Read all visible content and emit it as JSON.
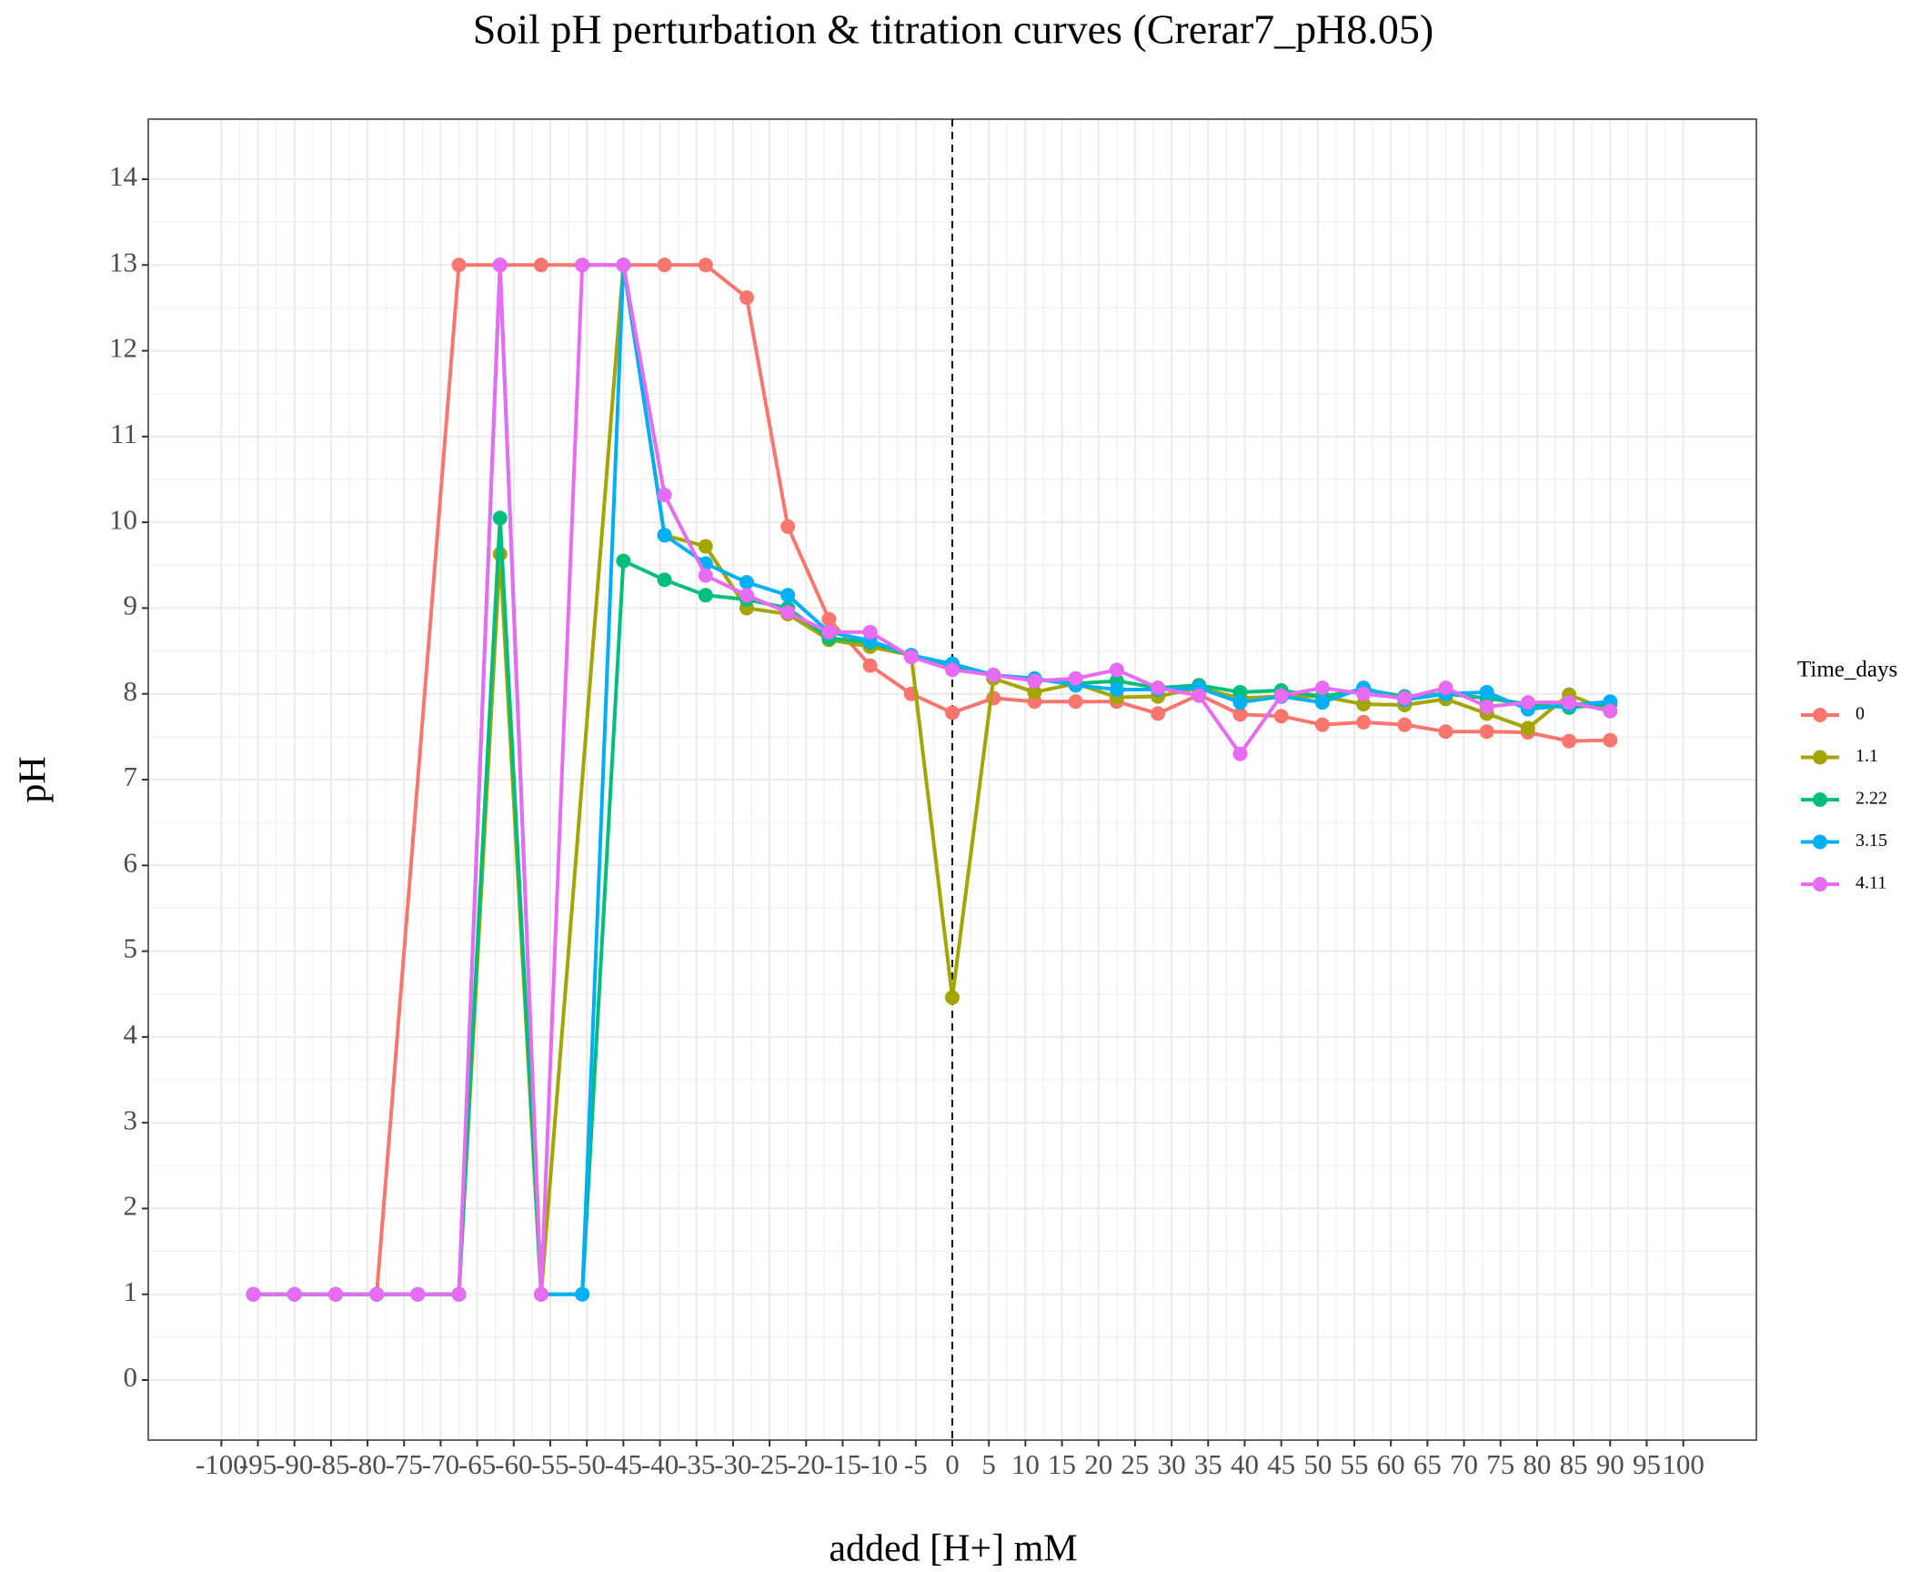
{
  "chart_data": {
    "type": "line",
    "title": "Soil pH perturbation & titration curves (Crerar7_pH8.05)",
    "x_label": "added [H+] mM",
    "y_label": "pH",
    "legend_title": "Time_days",
    "x": [
      -95.625,
      -90,
      -84.375,
      -78.75,
      -73.125,
      -67.5,
      -61.875,
      -56.25,
      -50.625,
      -45,
      -39.375,
      -33.75,
      -28.125,
      -22.5,
      -16.875,
      -11.25,
      -5.625,
      0,
      5.625,
      11.25,
      16.875,
      22.5,
      28.125,
      33.75,
      39.375,
      45,
      50.625,
      56.25,
      61.875,
      67.5,
      73.125,
      78.75,
      84.375,
      90
    ],
    "series": [
      {
        "name": "0",
        "color": "#F8766D",
        "x": [
          -95.625,
          -90,
          -84.375,
          -78.75,
          -67.5,
          -61.875,
          -56.25,
          -50.625,
          -45,
          -39.375,
          -33.75,
          -28.125,
          -22.5,
          -16.875,
          -11.25,
          -5.625,
          0,
          5.625,
          11.25,
          16.875,
          22.5,
          28.125,
          33.75,
          39.375,
          45,
          50.625,
          56.25,
          61.875,
          67.5,
          73.125,
          78.75,
          84.375,
          90
        ],
        "values": [
          1,
          1,
          1,
          1,
          13,
          13,
          13,
          13,
          13,
          13,
          13,
          12.62,
          9.95,
          8.87,
          8.33,
          8.0,
          7.78,
          7.95,
          7.91,
          7.91,
          7.91,
          7.77,
          7.99,
          7.76,
          7.74,
          7.64,
          7.67,
          7.64,
          7.56,
          7.56,
          7.55,
          7.45,
          7.46
        ]
      },
      {
        "name": "1.1",
        "color": "#A3A500",
        "x": [
          -95.625,
          -90,
          -84.375,
          -78.75,
          -73.125,
          -67.5,
          -61.875,
          -56.25,
          -45,
          -39.375,
          -33.75,
          -28.125,
          -22.5,
          -16.875,
          -11.25,
          -5.625,
          0,
          5.625,
          11.25,
          16.875,
          22.5,
          28.125,
          33.75,
          39.375,
          45,
          50.625,
          56.25,
          61.875,
          67.5,
          73.125,
          78.75,
          84.375,
          90
        ],
        "values": [
          1,
          1,
          1,
          1,
          1,
          1,
          9.63,
          1,
          13,
          9.85,
          9.72,
          9.0,
          8.93,
          8.63,
          8.55,
          8.45,
          4.46,
          8.18,
          8.02,
          8.12,
          7.96,
          7.97,
          8.07,
          7.95,
          7.97,
          7.97,
          7.88,
          7.87,
          7.94,
          7.77,
          7.6,
          7.99,
          7.8
        ]
      },
      {
        "name": "2.22",
        "color": "#00BF7D",
        "values": [
          1,
          1,
          1,
          1,
          1,
          1,
          10.05,
          1,
          1,
          9.55,
          9.33,
          9.15,
          9.1,
          9.0,
          8.65,
          8.6,
          8.45,
          8.33,
          8.22,
          8.17,
          8.12,
          8.15,
          8.07,
          8.1,
          8.02,
          8.04,
          7.97,
          8.05,
          7.97,
          8.0,
          7.95,
          7.88,
          7.84,
          7.88
        ]
      },
      {
        "name": "3.15",
        "color": "#00B0F6",
        "values": [
          1,
          1,
          1,
          1,
          1,
          1,
          13,
          1,
          1,
          13,
          9.85,
          9.52,
          9.3,
          9.15,
          8.72,
          8.62,
          8.45,
          8.35,
          8.22,
          8.18,
          8.1,
          8.05,
          8.05,
          8.07,
          7.9,
          7.97,
          7.9,
          8.07,
          7.93,
          8.0,
          8.02,
          7.82,
          7.87,
          7.91
        ]
      },
      {
        "name": "4.11",
        "color": "#E76BF3",
        "values": [
          1,
          1,
          1,
          1,
          1,
          1,
          13,
          1,
          13,
          13,
          10.32,
          9.38,
          9.15,
          8.95,
          8.72,
          8.72,
          8.43,
          8.28,
          8.22,
          8.15,
          8.18,
          8.28,
          8.07,
          7.98,
          7.3,
          7.98,
          8.07,
          8.0,
          7.95,
          8.07,
          7.85,
          7.9,
          7.9,
          7.8
        ]
      }
    ],
    "vline": 0,
    "xlim": [
      -110,
      110
    ],
    "ylim": [
      -0.7,
      14.7
    ],
    "xticks": [
      -100,
      -95,
      -90,
      -85,
      -80,
      -75,
      -70,
      -65,
      -60,
      -55,
      -50,
      -45,
      -40,
      -35,
      -30,
      -25,
      -20,
      -15,
      -10,
      -5,
      0,
      5,
      10,
      15,
      20,
      25,
      30,
      35,
      40,
      45,
      50,
      55,
      60,
      65,
      70,
      75,
      80,
      85,
      90,
      95,
      100
    ],
    "yticks": [
      0,
      1,
      2,
      3,
      4,
      5,
      6,
      7,
      8,
      9,
      10,
      11,
      12,
      13,
      14
    ],
    "grid": true,
    "legend": "right"
  }
}
